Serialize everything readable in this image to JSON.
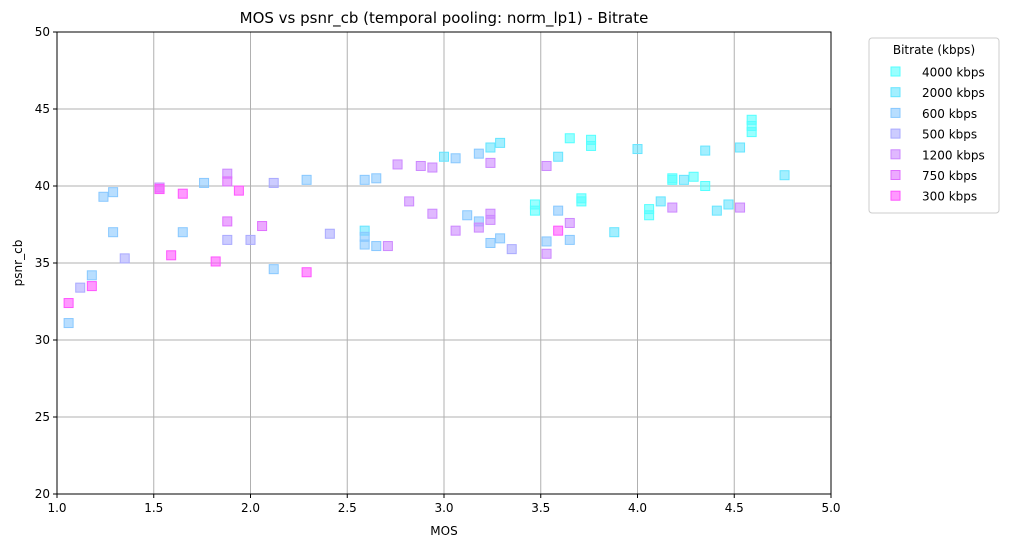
{
  "chart_data": {
    "type": "scatter",
    "title": "MOS vs psnr_cb (temporal pooling: norm_lp1) - Bitrate",
    "xlabel": "MOS",
    "ylabel": "psnr_cb",
    "xlim": [
      1.0,
      5.0
    ],
    "ylim": [
      20,
      50
    ],
    "xticks": [
      1.0,
      1.5,
      2.0,
      2.5,
      3.0,
      3.5,
      4.0,
      4.5,
      5.0
    ],
    "xtick_labels": [
      "1.0",
      "1.5",
      "2.0",
      "2.5",
      "3.0",
      "3.5",
      "4.0",
      "4.5",
      "5.0"
    ],
    "yticks": [
      20,
      25,
      30,
      35,
      40,
      45,
      50
    ],
    "ytick_labels": [
      "20",
      "25",
      "30",
      "35",
      "40",
      "45",
      "50"
    ],
    "grid": true,
    "legend_title": "Bitrate (kbps)",
    "legend_position": "outside-top-right",
    "marker": "square",
    "series": [
      {
        "name": "4000 kbps",
        "color": "#55ffff",
        "points": [
          [
            3.47,
            38.8
          ],
          [
            3.47,
            38.4
          ],
          [
            3.65,
            43.1
          ],
          [
            3.71,
            39.2
          ],
          [
            3.71,
            39.0
          ],
          [
            3.76,
            43.0
          ],
          [
            3.76,
            42.6
          ],
          [
            4.06,
            38.5
          ],
          [
            4.06,
            38.1
          ],
          [
            4.18,
            40.5
          ],
          [
            4.18,
            40.4
          ],
          [
            4.29,
            40.6
          ],
          [
            4.35,
            40.0
          ],
          [
            4.59,
            44.3
          ],
          [
            4.59,
            43.9
          ],
          [
            4.59,
            43.5
          ]
        ]
      },
      {
        "name": "2000 kbps",
        "color": "#66e5ff",
        "points": [
          [
            2.59,
            37.1
          ],
          [
            3.0,
            41.9
          ],
          [
            3.24,
            42.5
          ],
          [
            3.29,
            42.8
          ],
          [
            3.59,
            41.9
          ],
          [
            3.88,
            37.0
          ],
          [
            4.0,
            42.4
          ],
          [
            4.12,
            39.0
          ],
          [
            4.24,
            40.4
          ],
          [
            4.35,
            42.3
          ],
          [
            4.41,
            38.4
          ],
          [
            4.47,
            38.8
          ],
          [
            4.53,
            42.5
          ],
          [
            4.76,
            40.7
          ]
        ]
      },
      {
        "name": "600 kbps",
        "color": "#88c8ff",
        "points": [
          [
            1.06,
            31.1
          ],
          [
            1.18,
            34.2
          ],
          [
            1.24,
            39.3
          ],
          [
            1.29,
            39.6
          ],
          [
            1.29,
            37.0
          ],
          [
            1.65,
            37.0
          ],
          [
            1.76,
            40.2
          ],
          [
            2.12,
            34.6
          ],
          [
            2.29,
            40.4
          ],
          [
            2.59,
            40.4
          ],
          [
            2.59,
            36.7
          ],
          [
            2.59,
            36.2
          ],
          [
            2.65,
            40.5
          ],
          [
            2.65,
            36.1
          ],
          [
            3.06,
            41.8
          ],
          [
            3.12,
            38.1
          ],
          [
            3.18,
            42.1
          ],
          [
            3.18,
            37.7
          ],
          [
            3.24,
            36.3
          ],
          [
            3.29,
            36.6
          ],
          [
            3.53,
            36.4
          ],
          [
            3.59,
            38.4
          ],
          [
            3.65,
            36.5
          ]
        ]
      },
      {
        "name": "500 kbps",
        "color": "#aaaaff",
        "points": [
          [
            1.12,
            33.4
          ],
          [
            1.35,
            35.3
          ],
          [
            1.88,
            36.5
          ],
          [
            2.0,
            36.5
          ],
          [
            2.12,
            40.2
          ],
          [
            2.41,
            36.9
          ],
          [
            3.35,
            35.9
          ]
        ]
      },
      {
        "name": "1200 kbps",
        "color": "#cc88ff",
        "points": [
          [
            1.53,
            39.9
          ],
          [
            1.88,
            40.8
          ],
          [
            2.71,
            36.1
          ],
          [
            2.76,
            41.4
          ],
          [
            2.82,
            39.0
          ],
          [
            2.88,
            41.3
          ],
          [
            2.94,
            41.2
          ],
          [
            2.94,
            38.2
          ],
          [
            3.06,
            37.1
          ],
          [
            3.18,
            37.3
          ],
          [
            3.24,
            41.5
          ],
          [
            3.24,
            38.2
          ],
          [
            3.24,
            37.8
          ],
          [
            3.53,
            41.3
          ],
          [
            3.53,
            35.6
          ],
          [
            3.65,
            37.6
          ],
          [
            4.18,
            38.6
          ],
          [
            4.53,
            38.6
          ]
        ]
      },
      {
        "name": "750 kbps",
        "color": "#e070ff",
        "points": [
          [
            1.88,
            40.3
          ],
          [
            1.88,
            37.7
          ],
          [
            2.06,
            37.4
          ]
        ]
      },
      {
        "name": "300 kbps",
        "color": "#ff55ff",
        "points": [
          [
            1.06,
            32.4
          ],
          [
            1.18,
            33.5
          ],
          [
            1.53,
            39.8
          ],
          [
            1.59,
            35.5
          ],
          [
            1.65,
            39.5
          ],
          [
            1.82,
            35.1
          ],
          [
            1.94,
            39.7
          ],
          [
            2.29,
            34.4
          ],
          [
            3.59,
            37.1
          ]
        ]
      }
    ]
  }
}
